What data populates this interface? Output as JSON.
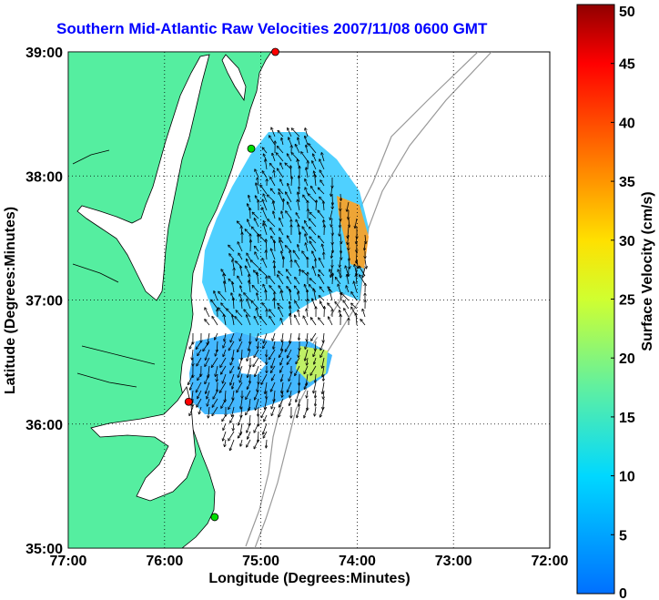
{
  "title": "Southern Mid-Atlantic Raw Velocities 2007/11/08 0600 GMT",
  "map": {
    "xlabel": "Longitude (Degrees:Minutes)",
    "ylabel": "Latitude (Degrees:Minutes)",
    "x_ticks": [
      "77:00",
      "76:00",
      "75:00",
      "74:00",
      "73:00",
      "72:00"
    ],
    "y_ticks": [
      "39:00",
      "38:00",
      "37:00",
      "36:00",
      "35:00"
    ],
    "lon_range": [
      -77,
      -72
    ],
    "lat_range": [
      35,
      39
    ],
    "grid": true,
    "land_color": "#55eea0",
    "stations": [
      {
        "lon": -74.85,
        "lat": 39.0,
        "color": "#ff0000"
      },
      {
        "lon": -75.1,
        "lat": 38.22,
        "color": "#00dd00"
      },
      {
        "lon": -75.75,
        "lat": 36.18,
        "color": "#ff0000"
      },
      {
        "lon": -75.48,
        "lat": 35.25,
        "color": "#00dd00"
      }
    ]
  },
  "colorbar": {
    "label": "Surface Velocity (cm/s)",
    "ticks": [
      "0",
      "5",
      "10",
      "15",
      "20",
      "25",
      "30",
      "35",
      "40",
      "45",
      "50"
    ],
    "range": [
      0,
      50
    ]
  }
}
